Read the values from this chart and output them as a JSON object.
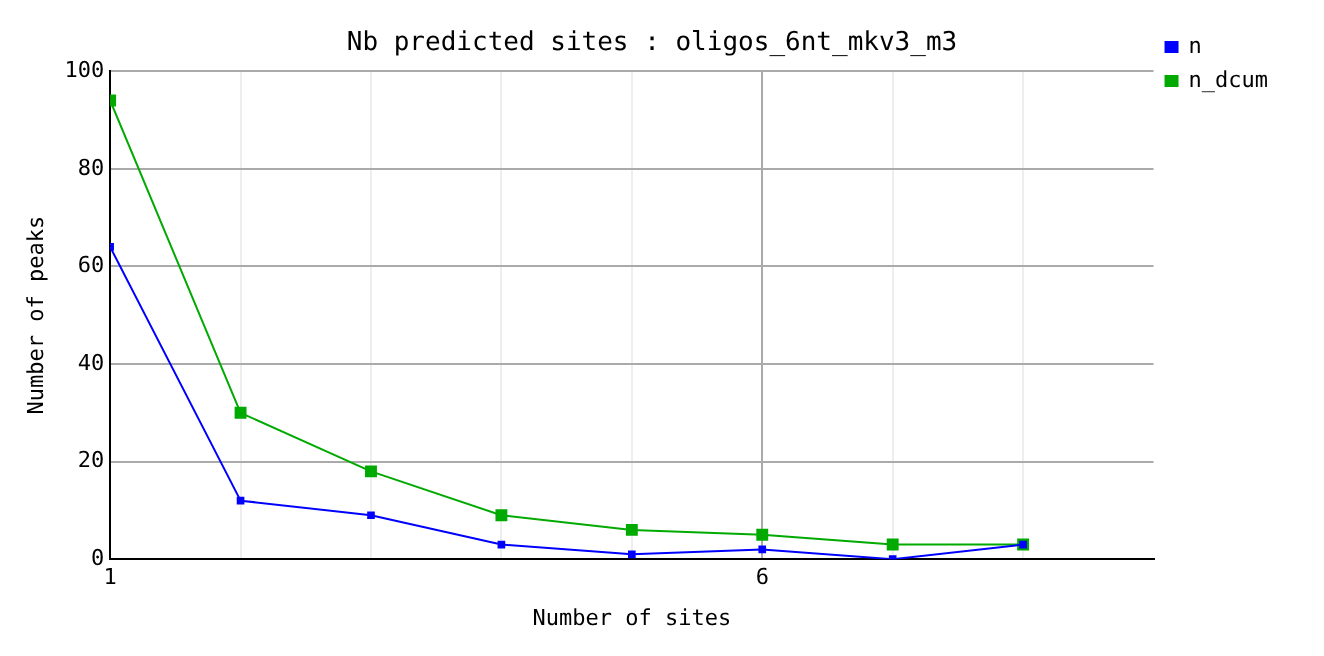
{
  "chart_data": {
    "type": "line",
    "title": "Nb predicted sites : oligos_6nt_mkv3_m3",
    "xlabel": "Number of sites",
    "ylabel": "Number of peaks",
    "x": [
      1,
      2,
      3,
      4,
      5,
      6,
      7,
      8
    ],
    "series": [
      {
        "name": "n",
        "color": "#0000ff",
        "values": [
          64,
          12,
          9,
          3,
          1,
          2,
          0,
          3
        ]
      },
      {
        "name": "n_dcum",
        "color": "#00aa00",
        "values": [
          94,
          30,
          18,
          9,
          6,
          5,
          3,
          3
        ]
      }
    ],
    "xlim": [
      1,
      9
    ],
    "xticks": [
      1,
      {
        "value": 2,
        "label": null
      },
      {
        "value": 3,
        "label": null
      },
      {
        "value": 4,
        "label": null
      },
      {
        "value": 5,
        "label": null
      },
      6,
      {
        "value": 7,
        "label": null
      },
      {
        "value": 8,
        "label": null
      }
    ],
    "ylim": [
      0,
      100
    ],
    "yticks": [
      0,
      20,
      40,
      60,
      80,
      100
    ],
    "grid": true,
    "legend": "top right",
    "marker": "square",
    "line_style": "solid"
  }
}
